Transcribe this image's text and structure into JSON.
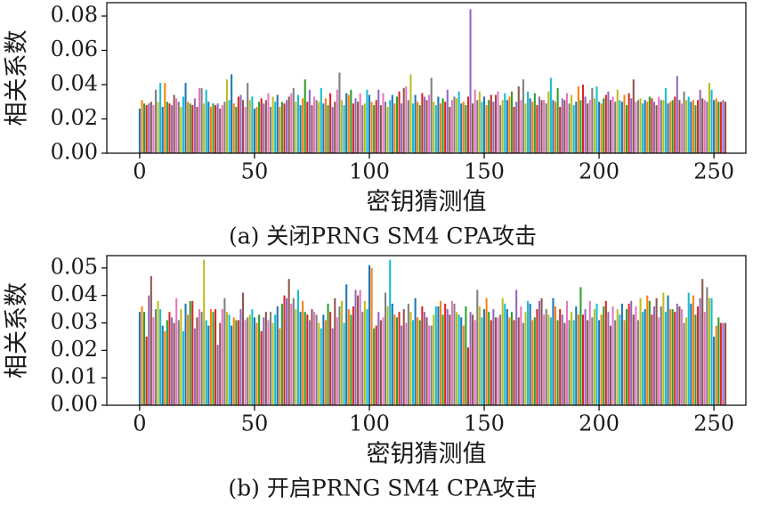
{
  "chart_data": [
    {
      "type": "bar",
      "title": "(a) 关闭PRNG SM4 CPA攻击",
      "xlabel": "密钥猜测值",
      "ylabel": "相关系数",
      "colors": [
        "#1f77b4",
        "#ff7f0e",
        "#2ca02c",
        "#d62728",
        "#9467bd",
        "#8c564b",
        "#e377c2",
        "#7f7f7f",
        "#bcbd22",
        "#17becf"
      ],
      "xlim": [
        -14.3,
        263.9
      ],
      "xticks": [
        0,
        50,
        100,
        150,
        200,
        250
      ],
      "ylim": [
        0,
        0.0878
      ],
      "yticks": [
        {
          "value": 0,
          "label": "0.00"
        },
        {
          "value": 0.02,
          "label": "0.02"
        },
        {
          "value": 0.04,
          "label": "0.04"
        },
        {
          "value": 0.06,
          "label": "0.06"
        },
        {
          "value": 0.08,
          "label": "0.08"
        }
      ],
      "x": [
        0,
        1,
        2,
        3,
        4,
        5,
        6,
        7,
        8,
        9,
        10,
        11,
        12,
        13,
        14,
        15,
        16,
        17,
        18,
        19,
        20,
        21,
        22,
        23,
        24,
        25,
        26,
        27,
        28,
        29,
        30,
        31,
        32,
        33,
        34,
        35,
        36,
        37,
        38,
        39,
        40,
        41,
        42,
        43,
        44,
        45,
        46,
        47,
        48,
        49,
        50,
        51,
        52,
        53,
        54,
        55,
        56,
        57,
        58,
        59,
        60,
        61,
        62,
        63,
        64,
        65,
        66,
        67,
        68,
        69,
        70,
        71,
        72,
        73,
        74,
        75,
        76,
        77,
        78,
        79,
        80,
        81,
        82,
        83,
        84,
        85,
        86,
        87,
        88,
        89,
        90,
        91,
        92,
        93,
        94,
        95,
        96,
        97,
        98,
        99,
        100,
        101,
        102,
        103,
        104,
        105,
        106,
        107,
        108,
        109,
        110,
        111,
        112,
        113,
        114,
        115,
        116,
        117,
        118,
        119,
        120,
        121,
        122,
        123,
        124,
        125,
        126,
        127,
        128,
        129,
        130,
        131,
        132,
        133,
        134,
        135,
        136,
        137,
        138,
        139,
        140,
        141,
        142,
        143,
        144,
        145,
        146,
        147,
        148,
        149,
        150,
        151,
        152,
        153,
        154,
        155,
        156,
        157,
        158,
        159,
        160,
        161,
        162,
        163,
        164,
        165,
        166,
        167,
        168,
        169,
        170,
        171,
        172,
        173,
        174,
        175,
        176,
        177,
        178,
        179,
        180,
        181,
        182,
        183,
        184,
        185,
        186,
        187,
        188,
        189,
        190,
        191,
        192,
        193,
        194,
        195,
        196,
        197,
        198,
        199,
        200,
        201,
        202,
        203,
        204,
        205,
        206,
        207,
        208,
        209,
        210,
        211,
        212,
        213,
        214,
        215,
        216,
        217,
        218,
        219,
        220,
        221,
        222,
        223,
        224,
        225,
        226,
        227,
        228,
        229,
        230,
        231,
        232,
        233,
        234,
        235,
        236,
        237,
        238,
        239,
        240,
        241,
        242,
        243,
        244,
        245,
        246,
        247,
        248,
        249,
        250,
        251,
        252,
        253,
        254,
        255
      ],
      "values": [
        0.026,
        0.031,
        0.029,
        0.028,
        0.029,
        0.03,
        0.028,
        0.037,
        0.03,
        0.041,
        0.027,
        0.041,
        0.03,
        0.029,
        0.028,
        0.034,
        0.032,
        0.03,
        0.027,
        0.033,
        0.041,
        0.03,
        0.029,
        0.028,
        0.032,
        0.027,
        0.038,
        0.038,
        0.029,
        0.037,
        0.03,
        0.027,
        0.029,
        0.028,
        0.029,
        0.026,
        0.028,
        0.03,
        0.043,
        0.031,
        0.046,
        0.029,
        0.027,
        0.033,
        0.034,
        0.031,
        0.027,
        0.041,
        0.031,
        0.033,
        0.026,
        0.027,
        0.03,
        0.032,
        0.029,
        0.031,
        0.035,
        0.027,
        0.033,
        0.03,
        0.034,
        0.027,
        0.03,
        0.029,
        0.031,
        0.033,
        0.035,
        0.038,
        0.03,
        0.034,
        0.028,
        0.032,
        0.043,
        0.03,
        0.037,
        0.028,
        0.033,
        0.031,
        0.03,
        0.038,
        0.029,
        0.032,
        0.028,
        0.035,
        0.027,
        0.03,
        0.037,
        0.047,
        0.031,
        0.028,
        0.035,
        0.034,
        0.037,
        0.029,
        0.032,
        0.03,
        0.035,
        0.028,
        0.029,
        0.037,
        0.034,
        0.03,
        0.028,
        0.031,
        0.037,
        0.028,
        0.035,
        0.03,
        0.027,
        0.031,
        0.034,
        0.029,
        0.033,
        0.036,
        0.029,
        0.038,
        0.039,
        0.031,
        0.046,
        0.029,
        0.034,
        0.03,
        0.028,
        0.035,
        0.033,
        0.031,
        0.034,
        0.044,
        0.03,
        0.028,
        0.033,
        0.029,
        0.032,
        0.03,
        0.037,
        0.027,
        0.031,
        0.033,
        0.032,
        0.036,
        0.029,
        0.03,
        0.028,
        0.033,
        0.084,
        0.029,
        0.037,
        0.031,
        0.036,
        0.03,
        0.033,
        0.028,
        0.031,
        0.034,
        0.03,
        0.034,
        0.036,
        0.028,
        0.031,
        0.035,
        0.031,
        0.033,
        0.036,
        0.027,
        0.03,
        0.039,
        0.031,
        0.043,
        0.029,
        0.036,
        0.032,
        0.03,
        0.035,
        0.028,
        0.033,
        0.031,
        0.031,
        0.029,
        0.036,
        0.044,
        0.031,
        0.03,
        0.038,
        0.027,
        0.032,
        0.031,
        0.035,
        0.029,
        0.034,
        0.028,
        0.03,
        0.039,
        0.031,
        0.04,
        0.033,
        0.029,
        0.031,
        0.038,
        0.032,
        0.039,
        0.03,
        0.029,
        0.032,
        0.034,
        0.036,
        0.031,
        0.033,
        0.03,
        0.037,
        0.031,
        0.03,
        0.034,
        0.028,
        0.035,
        0.032,
        0.043,
        0.03,
        0.031,
        0.032,
        0.029,
        0.031,
        0.03,
        0.033,
        0.032,
        0.03,
        0.028,
        0.033,
        0.031,
        0.031,
        0.038,
        0.029,
        0.03,
        0.031,
        0.033,
        0.045,
        0.031,
        0.029,
        0.036,
        0.031,
        0.033,
        0.03,
        0.031,
        0.028,
        0.031,
        0.037,
        0.032,
        0.031,
        0.03,
        0.041,
        0.037,
        0.031,
        0.032,
        0.03,
        0.03,
        0.031,
        0.03
      ]
    },
    {
      "type": "bar",
      "title": "(b) 开启PRNG SM4 CPA攻击",
      "xlabel": "密钥猜测值",
      "ylabel": "相关系数",
      "colors": [
        "#1f77b4",
        "#ff7f0e",
        "#2ca02c",
        "#d62728",
        "#9467bd",
        "#8c564b",
        "#e377c2",
        "#7f7f7f",
        "#bcbd22",
        "#17becf"
      ],
      "xlim": [
        -14.3,
        263.9
      ],
      "xticks": [
        0,
        50,
        100,
        150,
        200,
        250
      ],
      "ylim": [
        0,
        0.0545
      ],
      "yticks": [
        {
          "value": 0,
          "label": "0.00"
        },
        {
          "value": 0.01,
          "label": "0.01"
        },
        {
          "value": 0.02,
          "label": "0.02"
        },
        {
          "value": 0.03,
          "label": "0.03"
        },
        {
          "value": 0.04,
          "label": "0.04"
        },
        {
          "value": 0.05,
          "label": "0.05"
        }
      ],
      "x": [
        0,
        1,
        2,
        3,
        4,
        5,
        6,
        7,
        8,
        9,
        10,
        11,
        12,
        13,
        14,
        15,
        16,
        17,
        18,
        19,
        20,
        21,
        22,
        23,
        24,
        25,
        26,
        27,
        28,
        29,
        30,
        31,
        32,
        33,
        34,
        35,
        36,
        37,
        38,
        39,
        40,
        41,
        42,
        43,
        44,
        45,
        46,
        47,
        48,
        49,
        50,
        51,
        52,
        53,
        54,
        55,
        56,
        57,
        58,
        59,
        60,
        61,
        62,
        63,
        64,
        65,
        66,
        67,
        68,
        69,
        70,
        71,
        72,
        73,
        74,
        75,
        76,
        77,
        78,
        79,
        80,
        81,
        82,
        83,
        84,
        85,
        86,
        87,
        88,
        89,
        90,
        91,
        92,
        93,
        94,
        95,
        96,
        97,
        98,
        99,
        100,
        101,
        102,
        103,
        104,
        105,
        106,
        107,
        108,
        109,
        110,
        111,
        112,
        113,
        114,
        115,
        116,
        117,
        118,
        119,
        120,
        121,
        122,
        123,
        124,
        125,
        126,
        127,
        128,
        129,
        130,
        131,
        132,
        133,
        134,
        135,
        136,
        137,
        138,
        139,
        140,
        141,
        142,
        143,
        144,
        145,
        146,
        147,
        148,
        149,
        150,
        151,
        152,
        153,
        154,
        155,
        156,
        157,
        158,
        159,
        160,
        161,
        162,
        163,
        164,
        165,
        166,
        167,
        168,
        169,
        170,
        171,
        172,
        173,
        174,
        175,
        176,
        177,
        178,
        179,
        180,
        181,
        182,
        183,
        184,
        185,
        186,
        187,
        188,
        189,
        190,
        191,
        192,
        193,
        194,
        195,
        196,
        197,
        198,
        199,
        200,
        201,
        202,
        203,
        204,
        205,
        206,
        207,
        208,
        209,
        210,
        211,
        212,
        213,
        214,
        215,
        216,
        217,
        218,
        219,
        220,
        221,
        222,
        223,
        224,
        225,
        226,
        227,
        228,
        229,
        230,
        231,
        232,
        233,
        234,
        235,
        236,
        237,
        238,
        239,
        240,
        241,
        242,
        243,
        244,
        245,
        246,
        247,
        248,
        249,
        250,
        251,
        252,
        253,
        254,
        255
      ],
      "values": [
        0.034,
        0.036,
        0.034,
        0.025,
        0.04,
        0.047,
        0.032,
        0.035,
        0.038,
        0.035,
        0.029,
        0.027,
        0.031,
        0.034,
        0.032,
        0.03,
        0.039,
        0.031,
        0.035,
        0.027,
        0.037,
        0.033,
        0.038,
        0.038,
        0.028,
        0.032,
        0.035,
        0.034,
        0.053,
        0.031,
        0.029,
        0.035,
        0.034,
        0.035,
        0.022,
        0.03,
        0.035,
        0.039,
        0.034,
        0.033,
        0.029,
        0.032,
        0.031,
        0.031,
        0.035,
        0.041,
        0.031,
        0.032,
        0.033,
        0.035,
        0.032,
        0.03,
        0.033,
        0.027,
        0.032,
        0.034,
        0.031,
        0.034,
        0.03,
        0.033,
        0.036,
        0.028,
        0.037,
        0.04,
        0.039,
        0.046,
        0.037,
        0.039,
        0.035,
        0.042,
        0.034,
        0.038,
        0.034,
        0.033,
        0.031,
        0.035,
        0.034,
        0.033,
        0.03,
        0.028,
        0.033,
        0.031,
        0.037,
        0.034,
        0.028,
        0.039,
        0.032,
        0.036,
        0.038,
        0.03,
        0.044,
        0.035,
        0.033,
        0.036,
        0.042,
        0.04,
        0.042,
        0.034,
        0.038,
        0.035,
        0.051,
        0.05,
        0.028,
        0.029,
        0.034,
        0.031,
        0.032,
        0.041,
        0.036,
        0.053,
        0.037,
        0.033,
        0.032,
        0.034,
        0.029,
        0.035,
        0.03,
        0.037,
        0.034,
        0.031,
        0.039,
        0.032,
        0.031,
        0.036,
        0.034,
        0.032,
        0.029,
        0.029,
        0.033,
        0.036,
        0.036,
        0.038,
        0.033,
        0.037,
        0.035,
        0.033,
        0.038,
        0.037,
        0.034,
        0.033,
        0.032,
        0.029,
        0.036,
        0.021,
        0.034,
        0.033,
        0.031,
        0.042,
        0.036,
        0.032,
        0.035,
        0.039,
        0.034,
        0.031,
        0.035,
        0.032,
        0.032,
        0.033,
        0.039,
        0.037,
        0.035,
        0.032,
        0.034,
        0.031,
        0.042,
        0.032,
        0.036,
        0.03,
        0.034,
        0.038,
        0.037,
        0.031,
        0.032,
        0.035,
        0.038,
        0.039,
        0.033,
        0.035,
        0.033,
        0.032,
        0.039,
        0.036,
        0.031,
        0.035,
        0.033,
        0.03,
        0.038,
        0.031,
        0.034,
        0.031,
        0.036,
        0.033,
        0.043,
        0.033,
        0.035,
        0.031,
        0.038,
        0.032,
        0.035,
        0.037,
        0.031,
        0.033,
        0.036,
        0.038,
        0.034,
        0.029,
        0.036,
        0.031,
        0.035,
        0.033,
        0.037,
        0.031,
        0.035,
        0.037,
        0.038,
        0.033,
        0.036,
        0.031,
        0.039,
        0.034,
        0.035,
        0.04,
        0.038,
        0.033,
        0.036,
        0.039,
        0.032,
        0.036,
        0.041,
        0.034,
        0.04,
        0.035,
        0.035,
        0.034,
        0.037,
        0.036,
        0.035,
        0.03,
        0.032,
        0.041,
        0.037,
        0.04,
        0.033,
        0.036,
        0.039,
        0.046,
        0.034,
        0.043,
        0.039,
        0.039,
        0.025,
        0.029,
        0.032,
        0.03,
        0.03,
        0.03
      ]
    }
  ]
}
